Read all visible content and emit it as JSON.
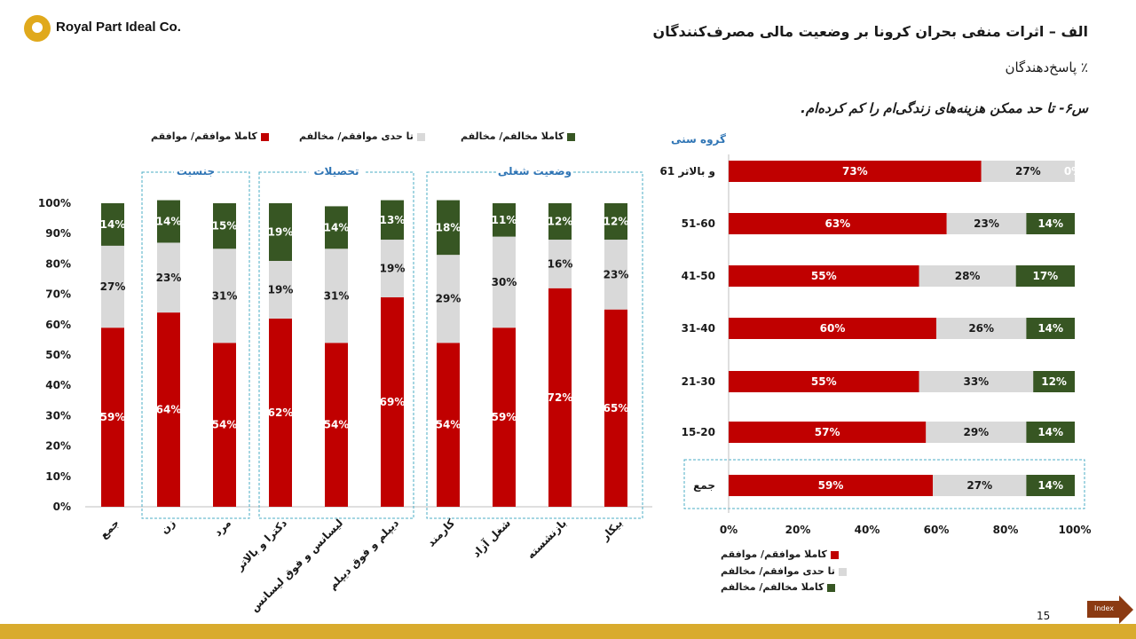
{
  "header": {
    "company": "Royal Part Ideal Co.",
    "title": "الف – اثرات منفی بحران کرونا بر وضعیت مالی مصرف‌کنندگان",
    "subtitle": "٪ پاسخ‌دهندگان",
    "question": "س۶- تا حد ممکن هزینه‌های زندگی‌ام را کم کرده‌ام."
  },
  "legend": {
    "agree": "کاملا موافقم/ موافقم",
    "neutral": "تا حدی موافقم/ مخالفم",
    "disagree": "کاملا مخالفم/ مخالفم"
  },
  "colors": {
    "agree": "#c00000",
    "neutral": "#d9d9d9",
    "disagree": "#375623",
    "group_border": "#4bacc6",
    "group_label": "#2f75b5"
  },
  "footer": {
    "page_number": "15",
    "index_label": "Index"
  },
  "chart_data": [
    {
      "type": "bar",
      "stacked": true,
      "orientation": "vertical",
      "ylim": [
        0,
        100
      ],
      "yticks": [
        "0%",
        "10%",
        "20%",
        "30%",
        "40%",
        "50%",
        "60%",
        "70%",
        "80%",
        "90%",
        "100%"
      ],
      "groups": [
        {
          "label": "",
          "categories": [
            "جمع"
          ]
        },
        {
          "label": "جنسیت",
          "categories": [
            "زن",
            "مرد"
          ]
        },
        {
          "label": "تحصیلات",
          "categories": [
            "دکترا و بالاتر",
            "لیسانس و فوق لیسانس",
            "دیپلم و فوق دیپلم"
          ]
        },
        {
          "label": "وضعیت شغلی",
          "categories": [
            "کارمند",
            "شغل آزاد",
            "بازنشسته",
            "بیکار"
          ]
        }
      ],
      "categories": [
        "جمع",
        "زن",
        "مرد",
        "دکترا و بالاتر",
        "لیسانس و فوق لیسانس",
        "دیپلم و فوق دیپلم",
        "کارمند",
        "شغل آزاد",
        "بازنشسته",
        "بیکار"
      ],
      "series": [
        {
          "name": "کاملا موافقم/ موافقم",
          "values": [
            59,
            64,
            54,
            62,
            54,
            69,
            54,
            59,
            72,
            65
          ]
        },
        {
          "name": "تا حدی موافقم/ مخالفم",
          "values": [
            27,
            23,
            31,
            19,
            31,
            19,
            29,
            30,
            16,
            23
          ]
        },
        {
          "name": "کاملا مخالفم/ مخالفم",
          "values": [
            14,
            14,
            15,
            19,
            14,
            13,
            18,
            11,
            12,
            12
          ]
        }
      ],
      "legend_position": "top",
      "grid": false
    },
    {
      "type": "bar",
      "stacked": true,
      "orientation": "horizontal",
      "title": "گروه سنی",
      "xlim": [
        0,
        100
      ],
      "xticks": [
        "0%",
        "20%",
        "40%",
        "60%",
        "80%",
        "100%"
      ],
      "categories": [
        "61 و بالاتر",
        "51-60",
        "41-50",
        "31-40",
        "21-30",
        "15-20",
        "جمع"
      ],
      "series": [
        {
          "name": "کاملا موافقم/ موافقم",
          "values": [
            73,
            63,
            55,
            60,
            55,
            57,
            59
          ]
        },
        {
          "name": "تا حدی موافقم/ مخالفم",
          "values": [
            27,
            23,
            28,
            26,
            33,
            29,
            27
          ]
        },
        {
          "name": "کاملا مخالفم/ مخالفم",
          "values": [
            0,
            14,
            17,
            14,
            12,
            14,
            14
          ]
        }
      ],
      "legend_position": "bottom",
      "grid": false
    }
  ]
}
